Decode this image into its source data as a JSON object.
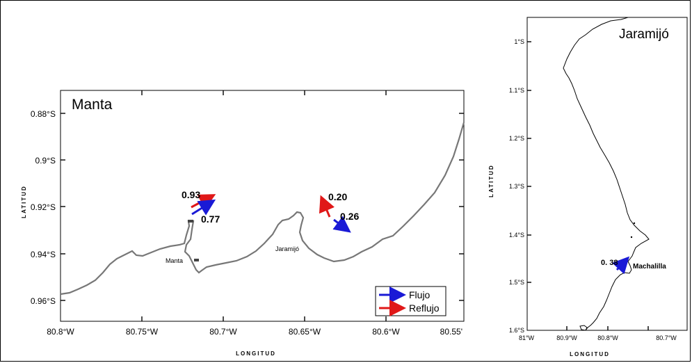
{
  "left_map": {
    "title": "Manta",
    "ylabel": "LATITUD",
    "xlabel": "LONGITUD",
    "y_ticks": [
      "0.88°S",
      "0.9°S",
      "0.92°S",
      "0.94°S",
      "0.96°S"
    ],
    "x_ticks": [
      "80.8°W",
      "80.75°W",
      "80.7°W",
      "80.65°W",
      "80.6°W",
      "80.55'"
    ],
    "places": [
      "Manta",
      "Jaramijó"
    ],
    "arrows": [
      {
        "label": "0.93",
        "type": "reflujo"
      },
      {
        "label": "0.77",
        "type": "flujo"
      },
      {
        "label": "0.20",
        "type": "reflujo"
      },
      {
        "label": "0.26",
        "type": "flujo"
      }
    ],
    "legend": [
      {
        "label": "Flujo",
        "color": "#1a1ad6"
      },
      {
        "label": "Reflujo",
        "color": "#e01818"
      }
    ]
  },
  "right_map": {
    "title": "Jaramijó",
    "ylabel": "LATITUD",
    "xlabel": "LONGITUD",
    "y_ticks": [
      "1°S",
      "1.1°S",
      "1.2°S",
      "1.3°S",
      "1.4°S",
      "1.5°S",
      "1.6°S"
    ],
    "x_ticks": [
      "81°W",
      "80.9°W",
      "80.8°W",
      "80.7°W"
    ],
    "place": "Machalilla",
    "arrow": {
      "label": "0. 38",
      "type": "flujo"
    }
  }
}
